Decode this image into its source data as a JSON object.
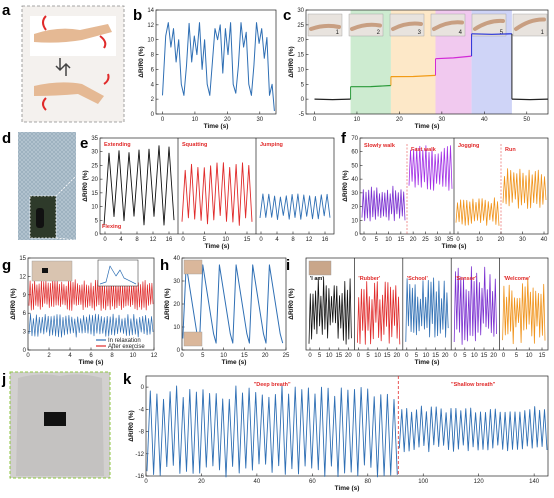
{
  "panel_letters": [
    "a",
    "b",
    "c",
    "d",
    "e",
    "f",
    "g",
    "h",
    "i",
    "j",
    "k"
  ],
  "photo_labels": {
    "c_steps": [
      "1",
      "2",
      "3",
      "4",
      "5",
      "1"
    ]
  },
  "chart_data": [
    {
      "id": "b",
      "type": "line",
      "xlabel": "Time (s)",
      "ylabel": "ΔR/R0 (%)",
      "xlim": [
        -2,
        35
      ],
      "ylim": [
        0,
        14
      ],
      "xticks": [
        0,
        10,
        20,
        30
      ],
      "yticks": [
        0,
        2,
        4,
        6,
        8,
        10,
        12,
        14
      ],
      "color": "#2f6fb4",
      "x": [
        0,
        1,
        1.8,
        2.6,
        3.4,
        4.2,
        5,
        5.8,
        6.6,
        7.4,
        8.2,
        9,
        9.8,
        10.6,
        11.4,
        12.2,
        13,
        13.8,
        14.6,
        15.4,
        16.2,
        17,
        17.8,
        18.6,
        19.4,
        20.2,
        21,
        21.8,
        22.6,
        23.4,
        24.2,
        25,
        25.8,
        26.6,
        27.4,
        28.2,
        29,
        29.8,
        30.6,
        31.4,
        32.2,
        33,
        33.8,
        34.5
      ],
      "y": [
        2.5,
        10.5,
        12.3,
        9,
        11.5,
        7,
        10,
        4,
        2.5,
        6.5,
        12.2,
        7,
        10.5,
        8,
        12.3,
        6,
        10,
        4,
        2.5,
        7,
        11.5,
        10,
        12,
        5.5,
        11.5,
        8,
        12.3,
        4,
        2.8,
        6.5,
        12.3,
        9,
        11,
        4,
        2.5,
        6.5,
        12.3,
        9.5,
        11.5,
        7.5,
        10.3,
        2.5,
        4,
        0.4
      ]
    },
    {
      "id": "c",
      "type": "line",
      "xlabel": "Time (s)",
      "ylabel": "ΔR/R0 (%)",
      "xlim": [
        -2,
        55
      ],
      "ylim": [
        -5,
        30
      ],
      "xticks": [
        0,
        10,
        20,
        30,
        40,
        50
      ],
      "yticks": [
        -5,
        0,
        5,
        10,
        15,
        20,
        25,
        30
      ],
      "bands": [
        {
          "from": 8.5,
          "to": 18,
          "color": "#cdebd0"
        },
        {
          "from": 18,
          "to": 28.5,
          "color": "#fde8c8"
        },
        {
          "from": 28.5,
          "to": 37,
          "color": "#f1c9ef"
        },
        {
          "from": 37,
          "to": 46.5,
          "color": "#cfd4f7"
        }
      ],
      "segments": [
        {
          "x": [
            0,
            8.5
          ],
          "y": [
            0,
            0
          ],
          "color": "#222222"
        },
        {
          "x": [
            8.5,
            18
          ],
          "y": [
            4.2,
            4.6
          ],
          "color": "#2a9a3a"
        },
        {
          "x": [
            18,
            28.5
          ],
          "y": [
            7.6,
            8
          ],
          "color": "#f29b16"
        },
        {
          "x": [
            28.5,
            37
          ],
          "y": [
            13.6,
            14.5
          ],
          "color": "#d22ad6"
        },
        {
          "x": [
            37,
            46.5
          ],
          "y": [
            22,
            22
          ],
          "color": "#2430d8"
        },
        {
          "x": [
            46.5,
            55
          ],
          "y": [
            0,
            0
          ],
          "color": "#222222"
        }
      ]
    },
    {
      "id": "e",
      "type": "line",
      "xlabel": "Time (s)",
      "ylabel": "ΔR/R0 (%)",
      "ylim": [
        0,
        35
      ],
      "yticks": [
        0,
        5,
        10,
        15,
        20,
        25,
        30,
        35
      ],
      "sub": [
        {
          "name": "Extending",
          "annotation2": "Flexing",
          "color": "#111111",
          "xticks": [
            0,
            4,
            8,
            12,
            16
          ],
          "cycles": 7,
          "min": 4,
          "max": 31
        },
        {
          "name": "Squatting",
          "color": "#e02a2a",
          "xticks": [
            0,
            5,
            10,
            15
          ],
          "cycles": 11,
          "min": 5,
          "max": 25
        },
        {
          "name": "Jumping",
          "color": "#2f6fb4",
          "xticks": [
            0,
            4,
            8,
            12,
            16
          ],
          "cycles": 12,
          "min": 6,
          "max": 14
        }
      ]
    },
    {
      "id": "f",
      "type": "line",
      "xlabel": "Time (s)",
      "ylabel": "ΔR/R0 (%)",
      "ylim": [
        0,
        70
      ],
      "yticks": [
        0,
        10,
        20,
        30,
        40,
        50,
        60,
        70
      ],
      "sub": [
        {
          "name": "Slowly walk",
          "color": "#7a2fd0",
          "xticks": [
            0,
            5,
            10,
            15,
            20,
            25,
            30,
            35
          ],
          "cycles": 16,
          "min": 12,
          "max": 32
        },
        {
          "name": "Fast walk",
          "color": "#a230e6",
          "cycles": 14,
          "min": 35,
          "max": 62
        },
        {
          "name": "Jogging",
          "color": "#f0931a",
          "xticks": [
            0,
            10,
            20,
            30,
            40
          ],
          "cycles": 14,
          "min": 8,
          "max": 24
        },
        {
          "name": "Run",
          "color": "#f0931a",
          "cycles": 14,
          "min": 22,
          "max": 45
        }
      ]
    },
    {
      "id": "g",
      "type": "line",
      "xlabel": "Time (s)",
      "ylabel": "ΔR/R0 (%)",
      "xlim": [
        0,
        12
      ],
      "ylim": [
        0,
        15
      ],
      "xticks": [
        0,
        2,
        4,
        6,
        8,
        10,
        12
      ],
      "yticks": [
        0,
        3,
        6,
        9,
        12,
        15
      ],
      "series": [
        {
          "name": "In relaxation",
          "color": "#2f6fb4",
          "cycles": 42,
          "min": 2.5,
          "max": 5.5
        },
        {
          "name": "After exercise",
          "color": "#e02a2a",
          "cycles": 55,
          "min": 7,
          "max": 11
        }
      ]
    },
    {
      "id": "h",
      "type": "line",
      "xlabel": "Time (s)",
      "ylabel": "ΔR/R0 (%)",
      "xlim": [
        0,
        25
      ],
      "ylim": [
        0,
        40
      ],
      "xticks": [
        0,
        5,
        10,
        15,
        20,
        25
      ],
      "yticks": [
        0,
        10,
        20,
        30,
        40
      ],
      "color": "#2f6fb4",
      "cycles": 6,
      "min": 3,
      "max": 37
    },
    {
      "id": "i",
      "type": "line",
      "xlabel": "Time (s)",
      "ylabel": "ΔR/R0 (%)",
      "sub": [
        {
          "name": "'I am'",
          "color": "#111111",
          "xticks": [
            0,
            5,
            10,
            15,
            20
          ]
        },
        {
          "name": "'Rubber'",
          "color": "#e02a2a",
          "xticks": [
            0,
            5,
            10,
            15,
            20
          ]
        },
        {
          "name": "'School'",
          "color": "#2f6fb4",
          "xticks": [
            0,
            5,
            10,
            15,
            20
          ]
        },
        {
          "name": "'Sensor'",
          "color": "#7a2fd0",
          "xticks": [
            0,
            5,
            10,
            15,
            20
          ]
        },
        {
          "name": "'Welcome'",
          "color": "#f0931a",
          "xticks": [
            0,
            5,
            10,
            15
          ]
        }
      ]
    },
    {
      "id": "k",
      "type": "line",
      "xlabel": "Time (s)",
      "ylabel": "ΔR/R0 (%)",
      "xlim": [
        0,
        145
      ],
      "ylim": [
        -16,
        2
      ],
      "xticks": [
        0,
        20,
        40,
        60,
        80,
        100,
        120,
        140
      ],
      "yticks": [
        0,
        -4,
        -8,
        -12,
        -16
      ],
      "divider_x": 91,
      "series": [
        {
          "name": "\"Deep breath\"",
          "color": "#2f6fb4",
          "x_from": 0,
          "x_to": 91,
          "cycles": 38,
          "min": -15,
          "max": -1
        },
        {
          "name": "\"Shallow breath\"",
          "color": "#2f6fb4",
          "x_from": 91,
          "x_to": 145,
          "cycles": 30,
          "min": -11,
          "max": -4
        }
      ]
    }
  ]
}
